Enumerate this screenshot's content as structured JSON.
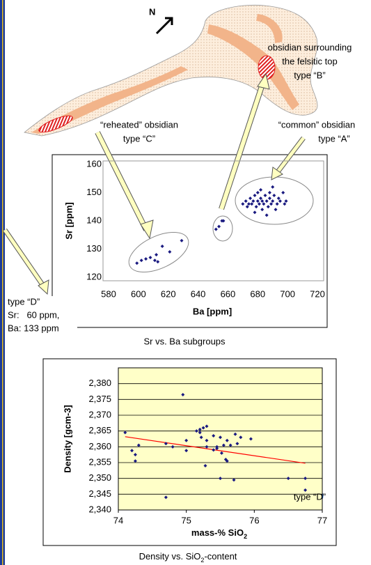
{
  "map": {
    "north": "N",
    "label_b": [
      "obsidian surrounding",
      "the felsitic top",
      "type “B”"
    ],
    "label_c": [
      "“reheated” obsidian",
      "type “C”"
    ],
    "label_a": [
      "“common” obsidian",
      "type “A”"
    ]
  },
  "side_note": [
    "type “D”",
    "Sr:   60 ppm,",
    "Ba: 133 ppm"
  ],
  "chart_data": [
    {
      "type": "scatter",
      "x_label": "Ba [ppm]",
      "y_label": "Sr [ppm]",
      "caption": "Sr vs. Ba subgroups",
      "color": "#1a1a80",
      "grid": false,
      "xlim": [
        580,
        720
      ],
      "xticks": [
        580,
        600,
        620,
        640,
        660,
        680,
        700,
        720
      ],
      "ylim": [
        120,
        160
      ],
      "yticks": [
        120,
        130,
        140,
        150,
        160
      ],
      "x": [
        599,
        602,
        605,
        608,
        611,
        612,
        613,
        616,
        621,
        629,
        652,
        654,
        656,
        657,
        670,
        672,
        673,
        674,
        675,
        676,
        677,
        678,
        679,
        680,
        680,
        681,
        682,
        683,
        683,
        684,
        685,
        686,
        687,
        688,
        689,
        690,
        690,
        691,
        692,
        693,
        694,
        695,
        697,
        698,
        699,
        678,
        686,
        688,
        682
      ],
      "values": [
        125,
        126,
        126.5,
        127,
        126,
        128,
        125.5,
        131,
        129,
        133,
        137,
        138,
        140,
        140,
        146,
        147,
        145,
        146,
        148,
        146,
        147,
        149,
        145,
        147,
        150,
        146,
        148,
        144,
        147,
        146,
        149,
        147,
        145,
        148,
        146,
        152,
        147,
        149,
        144,
        146,
        148,
        147,
        150,
        146,
        147,
        143,
        142,
        150,
        151
      ]
    },
    {
      "type": "scatter",
      "x_label": [
        "mass-% SiO",
        "2"
      ],
      "y_label": "Density [gcm-3]",
      "caption": [
        "Density vs. SiO",
        "2",
        "-content"
      ],
      "color": "#1a1a80",
      "grid": true,
      "background": "#ffffc8",
      "xlim": [
        74,
        77
      ],
      "xticks": [
        74,
        75,
        76,
        77
      ],
      "ylim": [
        2.34,
        2.385
      ],
      "yticks": [
        {
          "value": 2.34,
          "label": "2,340"
        },
        {
          "value": 2.345,
          "label": "2,345"
        },
        {
          "value": 2.35,
          "label": "2,350"
        },
        {
          "value": 2.355,
          "label": "2,355"
        },
        {
          "value": 2.36,
          "label": "2,360"
        },
        {
          "value": 2.365,
          "label": "2,365"
        },
        {
          "value": 2.37,
          "label": "2,370"
        },
        {
          "value": 2.375,
          "label": "2,375"
        },
        {
          "value": 2.38,
          "label": "2,380"
        }
      ],
      "x": [
        74.1,
        74.2,
        74.25,
        74.25,
        74.3,
        74.7,
        74.7,
        74.8,
        74.95,
        75.0,
        75.0,
        75.15,
        75.2,
        75.2,
        75.22,
        75.25,
        75.3,
        75.3,
        75.3,
        75.28,
        75.4,
        75.45,
        75.4,
        75.45,
        75.5,
        75.52,
        75.55,
        75.6,
        75.6,
        75.65,
        75.7,
        75.72,
        75.75,
        75.8,
        75.95,
        75.5,
        75.58,
        76.5,
        76.75,
        76.75
      ],
      "values": [
        2.3645,
        2.3588,
        2.3575,
        2.3555,
        2.3605,
        2.344,
        2.361,
        2.36,
        2.3765,
        2.362,
        2.3588,
        2.365,
        2.3645,
        2.3655,
        2.363,
        2.366,
        2.3665,
        2.362,
        2.36,
        2.354,
        2.3635,
        2.36,
        2.359,
        2.3595,
        2.35,
        2.358,
        2.3605,
        2.362,
        2.3555,
        2.3605,
        2.3495,
        2.364,
        2.361,
        2.363,
        2.3625,
        2.363,
        2.356,
        2.35,
        2.35,
        2.3463
      ],
      "trendline": {
        "x": [
          74.1,
          76.75
        ],
        "values": [
          2.3632,
          2.3548
        ],
        "color": "#ff0000"
      },
      "annotation": "type “D”"
    }
  ]
}
